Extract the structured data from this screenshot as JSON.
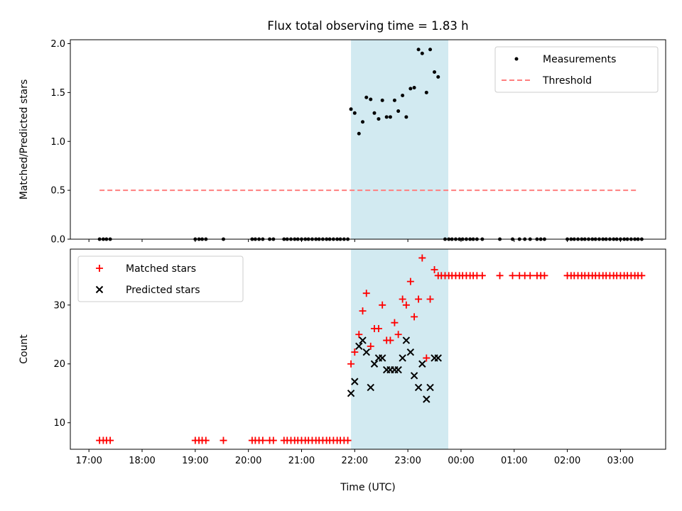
{
  "chart_data": {
    "title": "Flux total observing time = 1.83 h",
    "xlabel": "Time (UTC)",
    "x_unit": "hours since 17:00 UTC",
    "xlim": [
      -0.35,
      10.85
    ],
    "x_ticks": [
      {
        "value": 0,
        "label": "17:00"
      },
      {
        "value": 1,
        "label": "18:00"
      },
      {
        "value": 2,
        "label": "19:00"
      },
      {
        "value": 3,
        "label": "20:00"
      },
      {
        "value": 4,
        "label": "21:00"
      },
      {
        "value": 5,
        "label": "22:00"
      },
      {
        "value": 6,
        "label": "23:00"
      },
      {
        "value": 7,
        "label": "00:00"
      },
      {
        "value": 8,
        "label": "01:00"
      },
      {
        "value": 9,
        "label": "02:00"
      },
      {
        "value": 10,
        "label": "03:00"
      }
    ],
    "highlight_span": {
      "x_start": 4.93,
      "x_end": 6.76,
      "color": "#add8e6"
    },
    "panels": [
      {
        "type": "scatter",
        "ylabel": "Matched/Predicted stars",
        "ylim": [
          0,
          2.04
        ],
        "y_ticks": [
          {
            "value": 0,
            "label": "0.0"
          },
          {
            "value": 0.5,
            "label": "0.5"
          },
          {
            "value": 1.0,
            "label": "1.0"
          },
          {
            "value": 1.5,
            "label": "1.5"
          },
          {
            "value": 2.0,
            "label": "2.0"
          }
        ],
        "legend_position": "upper right",
        "series": [
          {
            "name": "Measurements",
            "kind": "dots",
            "color": "#000000",
            "points": [
              [
                0.2,
                0
              ],
              [
                0.27,
                0
              ],
              [
                0.33,
                0
              ],
              [
                0.4,
                0
              ],
              [
                2.0,
                0
              ],
              [
                2.07,
                0
              ],
              [
                2.13,
                0
              ],
              [
                2.2,
                0
              ],
              [
                2.53,
                0
              ],
              [
                3.07,
                0
              ],
              [
                3.13,
                0
              ],
              [
                3.2,
                0
              ],
              [
                3.27,
                0
              ],
              [
                3.4,
                0
              ],
              [
                3.47,
                0
              ],
              [
                3.67,
                0
              ],
              [
                3.73,
                0
              ],
              [
                3.8,
                0
              ],
              [
                3.87,
                0
              ],
              [
                3.93,
                0
              ],
              [
                4.0,
                0
              ],
              [
                4.07,
                0
              ],
              [
                4.13,
                0
              ],
              [
                4.2,
                0
              ],
              [
                4.27,
                0
              ],
              [
                4.33,
                0
              ],
              [
                4.4,
                0
              ],
              [
                4.47,
                0
              ],
              [
                4.53,
                0
              ],
              [
                4.6,
                0
              ],
              [
                4.67,
                0
              ],
              [
                4.73,
                0
              ],
              [
                4.8,
                0
              ],
              [
                4.87,
                0
              ],
              [
                4.93,
                1.33
              ],
              [
                5.0,
                1.29
              ],
              [
                5.08,
                1.08
              ],
              [
                5.15,
                1.2
              ],
              [
                5.22,
                1.45
              ],
              [
                5.3,
                1.43
              ],
              [
                5.37,
                1.29
              ],
              [
                5.45,
                1.23
              ],
              [
                5.52,
                1.42
              ],
              [
                5.6,
                1.25
              ],
              [
                5.67,
                1.25
              ],
              [
                5.75,
                1.42
              ],
              [
                5.82,
                1.31
              ],
              [
                5.9,
                1.47
              ],
              [
                5.97,
                1.25
              ],
              [
                6.05,
                1.54
              ],
              [
                6.12,
                1.55
              ],
              [
                6.2,
                1.94
              ],
              [
                6.27,
                1.9
              ],
              [
                6.35,
                1.5
              ],
              [
                6.42,
                1.94
              ],
              [
                6.5,
                1.71
              ],
              [
                6.57,
                1.66
              ],
              [
                6.7,
                0
              ],
              [
                6.77,
                0
              ],
              [
                6.83,
                0
              ],
              [
                6.9,
                0
              ],
              [
                6.97,
                0
              ],
              [
                7.03,
                0
              ],
              [
                7.1,
                0
              ],
              [
                7.17,
                0
              ],
              [
                7.23,
                0
              ],
              [
                7.3,
                0
              ],
              [
                7.4,
                0
              ],
              [
                7.73,
                0
              ],
              [
                7.97,
                0
              ],
              [
                8.1,
                0
              ],
              [
                8.2,
                0
              ],
              [
                8.3,
                0
              ],
              [
                8.43,
                0
              ],
              [
                8.5,
                0
              ],
              [
                8.57,
                0
              ],
              [
                9.0,
                0
              ],
              [
                9.07,
                0
              ],
              [
                9.13,
                0
              ],
              [
                9.2,
                0
              ],
              [
                9.27,
                0
              ],
              [
                9.33,
                0
              ],
              [
                9.4,
                0
              ],
              [
                9.47,
                0
              ],
              [
                9.53,
                0
              ],
              [
                9.6,
                0
              ],
              [
                9.67,
                0
              ],
              [
                9.73,
                0
              ],
              [
                9.8,
                0
              ],
              [
                9.87,
                0
              ],
              [
                9.93,
                0
              ],
              [
                10.0,
                0
              ],
              [
                10.07,
                0
              ],
              [
                10.13,
                0
              ],
              [
                10.2,
                0
              ],
              [
                10.27,
                0
              ],
              [
                10.33,
                0
              ],
              [
                10.4,
                0
              ]
            ]
          },
          {
            "name": "Threshold",
            "kind": "dashed-line",
            "color": "#ff7f7f",
            "x": [
              0.2,
              10.3
            ],
            "y": [
              0.5,
              0.5
            ]
          }
        ]
      },
      {
        "type": "scatter",
        "ylabel": "Count",
        "ylim": [
          5.5,
          39.5
        ],
        "y_ticks": [
          {
            "value": 10,
            "label": "10"
          },
          {
            "value": 20,
            "label": "20"
          },
          {
            "value": 30,
            "label": "30"
          }
        ],
        "legend_position": "upper left",
        "series": [
          {
            "name": "Matched stars",
            "kind": "plus",
            "color": "#ff0000",
            "points": [
              [
                0.2,
                7
              ],
              [
                0.27,
                7
              ],
              [
                0.33,
                7
              ],
              [
                0.4,
                7
              ],
              [
                2.0,
                7
              ],
              [
                2.07,
                7
              ],
              [
                2.13,
                7
              ],
              [
                2.2,
                7
              ],
              [
                2.53,
                7
              ],
              [
                3.07,
                7
              ],
              [
                3.13,
                7
              ],
              [
                3.2,
                7
              ],
              [
                3.27,
                7
              ],
              [
                3.4,
                7
              ],
              [
                3.47,
                7
              ],
              [
                3.67,
                7
              ],
              [
                3.73,
                7
              ],
              [
                3.8,
                7
              ],
              [
                3.87,
                7
              ],
              [
                3.93,
                7
              ],
              [
                4.0,
                7
              ],
              [
                4.07,
                7
              ],
              [
                4.13,
                7
              ],
              [
                4.2,
                7
              ],
              [
                4.27,
                7
              ],
              [
                4.33,
                7
              ],
              [
                4.4,
                7
              ],
              [
                4.47,
                7
              ],
              [
                4.53,
                7
              ],
              [
                4.6,
                7
              ],
              [
                4.67,
                7
              ],
              [
                4.73,
                7
              ],
              [
                4.8,
                7
              ],
              [
                4.87,
                7
              ],
              [
                4.93,
                20
              ],
              [
                5.0,
                22
              ],
              [
                5.08,
                25
              ],
              [
                5.15,
                29
              ],
              [
                5.22,
                32
              ],
              [
                5.3,
                23
              ],
              [
                5.37,
                26
              ],
              [
                5.45,
                26
              ],
              [
                5.52,
                30
              ],
              [
                5.6,
                24
              ],
              [
                5.67,
                24
              ],
              [
                5.75,
                27
              ],
              [
                5.82,
                25
              ],
              [
                5.9,
                31
              ],
              [
                5.97,
                30
              ],
              [
                6.05,
                34
              ],
              [
                6.12,
                28
              ],
              [
                6.2,
                31
              ],
              [
                6.27,
                38
              ],
              [
                6.35,
                21
              ],
              [
                6.42,
                31
              ],
              [
                6.5,
                36
              ],
              [
                6.57,
                35
              ],
              [
                6.63,
                35
              ],
              [
                6.7,
                35
              ],
              [
                6.77,
                35
              ],
              [
                6.83,
                35
              ],
              [
                6.9,
                35
              ],
              [
                6.97,
                35
              ],
              [
                7.03,
                35
              ],
              [
                7.1,
                35
              ],
              [
                7.17,
                35
              ],
              [
                7.23,
                35
              ],
              [
                7.3,
                35
              ],
              [
                7.4,
                35
              ],
              [
                7.73,
                35
              ],
              [
                7.97,
                35
              ],
              [
                8.1,
                35
              ],
              [
                8.2,
                35
              ],
              [
                8.3,
                35
              ],
              [
                8.43,
                35
              ],
              [
                8.5,
                35
              ],
              [
                8.57,
                35
              ],
              [
                9.0,
                35
              ],
              [
                9.07,
                35
              ],
              [
                9.13,
                35
              ],
              [
                9.2,
                35
              ],
              [
                9.27,
                35
              ],
              [
                9.33,
                35
              ],
              [
                9.4,
                35
              ],
              [
                9.47,
                35
              ],
              [
                9.53,
                35
              ],
              [
                9.6,
                35
              ],
              [
                9.67,
                35
              ],
              [
                9.73,
                35
              ],
              [
                9.8,
                35
              ],
              [
                9.87,
                35
              ],
              [
                9.93,
                35
              ],
              [
                10.0,
                35
              ],
              [
                10.07,
                35
              ],
              [
                10.13,
                35
              ],
              [
                10.2,
                35
              ],
              [
                10.27,
                35
              ],
              [
                10.33,
                35
              ],
              [
                10.4,
                35
              ]
            ]
          },
          {
            "name": "Predicted stars",
            "kind": "x",
            "color": "#000000",
            "points": [
              [
                4.93,
                15
              ],
              [
                5.0,
                17
              ],
              [
                5.08,
                23
              ],
              [
                5.15,
                24
              ],
              [
                5.22,
                22
              ],
              [
                5.3,
                16
              ],
              [
                5.37,
                20
              ],
              [
                5.45,
                21
              ],
              [
                5.52,
                21
              ],
              [
                5.6,
                19
              ],
              [
                5.67,
                19
              ],
              [
                5.75,
                19
              ],
              [
                5.82,
                19
              ],
              [
                5.9,
                21
              ],
              [
                5.97,
                24
              ],
              [
                6.05,
                22
              ],
              [
                6.12,
                18
              ],
              [
                6.2,
                16
              ],
              [
                6.27,
                20
              ],
              [
                6.35,
                14
              ],
              [
                6.42,
                16
              ],
              [
                6.5,
                21
              ],
              [
                6.57,
                21
              ]
            ]
          }
        ]
      }
    ]
  }
}
